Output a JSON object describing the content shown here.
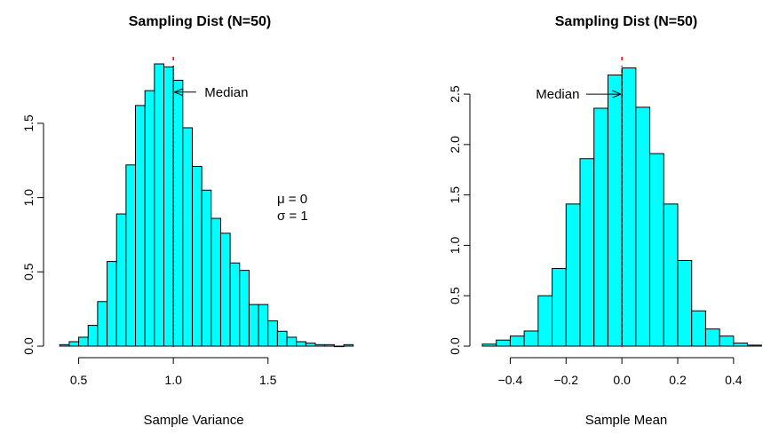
{
  "chart_data": [
    {
      "type": "bar",
      "title": "Sampling Dist (N=50)",
      "xlabel": "Sample Variance",
      "ylabel": "",
      "xlim": [
        0.38,
        1.9
      ],
      "ylim": [
        0,
        1.9
      ],
      "x_ticks": [
        0.5,
        1.0,
        1.5
      ],
      "x_tick_labels": [
        "0.5",
        "1.0",
        "1.5"
      ],
      "y_ticks": [
        0,
        0.5,
        1.0,
        1.5
      ],
      "y_tick_labels": [
        "0.0",
        "0.5",
        "1.0",
        "1.5"
      ],
      "bin_width": 0.05,
      "bin_start": 0.4,
      "values": [
        0.01,
        0.03,
        0.06,
        0.14,
        0.3,
        0.57,
        0.89,
        1.22,
        1.62,
        1.72,
        1.9,
        1.88,
        1.79,
        1.47,
        1.21,
        1.05,
        0.86,
        0.76,
        0.56,
        0.51,
        0.28,
        0.28,
        0.17,
        0.1,
        0.06,
        0.03,
        0.02,
        0.01,
        0.01,
        0.0,
        0.01
      ],
      "median_line": 1.0,
      "annotation": {
        "text": "Median",
        "arrow_to": [
          1.0,
          1.71
        ],
        "text_pos": [
          1.28,
          1.71
        ]
      },
      "params": {
        "mu": "μ = 0",
        "sigma": "σ = 1"
      },
      "params_pos": [
        1.55,
        1.0
      ],
      "bar_color": "#00FFFF",
      "median_line_style": "dotted",
      "median_line_color": "#000000",
      "median_tick_color": "#FF0000"
    },
    {
      "type": "bar",
      "title": "Sampling Dist (N=50)",
      "xlabel": "Sample Mean",
      "ylabel": "",
      "xlim": [
        -0.5,
        0.48
      ],
      "ylim": [
        0,
        2.8
      ],
      "x_ticks": [
        -0.4,
        -0.2,
        0.0,
        0.2,
        0.4
      ],
      "x_tick_labels": [
        "−0.4",
        "−0.2",
        "0.0",
        "0.2",
        "0.4"
      ],
      "y_ticks": [
        0,
        0.5,
        1.0,
        1.5,
        2.0,
        2.5
      ],
      "y_tick_labels": [
        "0.0",
        "0.5",
        "1.0",
        "1.5",
        "2.0",
        "2.5"
      ],
      "bin_width": 0.05,
      "bin_start": -0.5,
      "values": [
        0.02,
        0.06,
        0.1,
        0.15,
        0.5,
        0.77,
        1.41,
        1.86,
        2.36,
        2.69,
        2.76,
        2.37,
        1.91,
        1.41,
        0.85,
        0.35,
        0.17,
        0.1,
        0.03,
        0.01
      ],
      "median_line": 0.0,
      "annotation": {
        "text": "Median",
        "arrow_to": [
          0.0,
          2.5
        ],
        "text_pos": [
          -0.23,
          2.5
        ]
      },
      "bar_color": "#00FFFF",
      "median_line_style": "dashed",
      "median_line_color": "#000000",
      "median_tick_color": "#FF0000"
    }
  ]
}
